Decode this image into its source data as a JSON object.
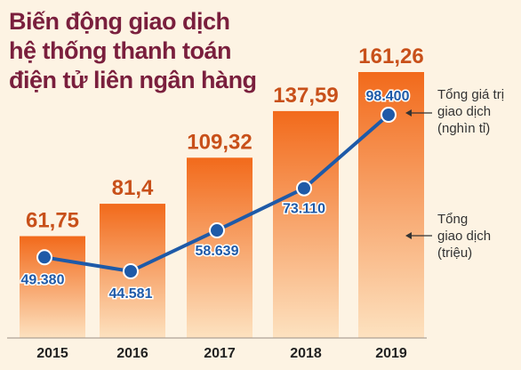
{
  "title_lines": [
    "Biến động giao dịch",
    "hệ thống thanh toán",
    "điện tử liên ngân hàng"
  ],
  "legend": {
    "line_label": [
      "Tổng giá trị",
      "giao dịch",
      "(nghìn tỉ)"
    ],
    "bar_label": [
      "Tổng",
      "giao dịch",
      "(triệu)"
    ]
  },
  "colors": {
    "title": "#7a1f3d",
    "bar_top": "#f26a1b",
    "bar_bottom": "#fde2c0",
    "bar_label": "#c8501a",
    "line": "#1e5aa8",
    "background": "#fdf3e3"
  },
  "chart_data": {
    "type": "bar+line",
    "categories": [
      "2015",
      "2016",
      "2017",
      "2018",
      "2019"
    ],
    "series": [
      {
        "name": "Tổng giao dịch (triệu)",
        "type": "bar",
        "values": [
          61.75,
          81.4,
          109.32,
          137.59,
          161.26
        ],
        "labels": [
          "61,75",
          "81,4",
          "109,32",
          "137,59",
          "161,26"
        ]
      },
      {
        "name": "Tổng giá trị giao dịch (nghìn tỉ)",
        "type": "line",
        "values": [
          49380,
          44581,
          58639,
          73110,
          98400
        ],
        "labels": [
          "49.380",
          "44.581",
          "58.639",
          "73.110",
          "98.400"
        ]
      }
    ]
  }
}
